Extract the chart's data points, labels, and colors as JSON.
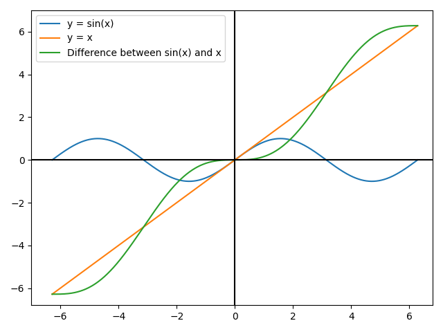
{
  "x_min": -6.28318530717959,
  "x_max": 6.28318530717959,
  "num_points": 1000,
  "line_sin_color": "#1f77b4",
  "line_x_color": "#ff7f0e",
  "line_diff_color": "#2ca02c",
  "line_sin_label": "y = sin(x)",
  "line_x_label": "y = x",
  "line_diff_label": "Difference between sin(x) and x",
  "axhline_color": "black",
  "axvline_color": "black",
  "axhline_lw": 1.5,
  "axvline_lw": 1.5,
  "legend_loc": "upper left",
  "figsize": [
    6.4,
    4.8
  ],
  "dpi": 100,
  "x_ticks": [
    -6,
    -4,
    -2,
    0,
    2,
    4,
    6
  ],
  "y_ticks": [
    -6,
    -4,
    -2,
    0,
    2,
    4,
    6
  ],
  "xlim": [
    -7.0,
    6.8
  ],
  "ylim": [
    -6.8,
    7.0
  ]
}
